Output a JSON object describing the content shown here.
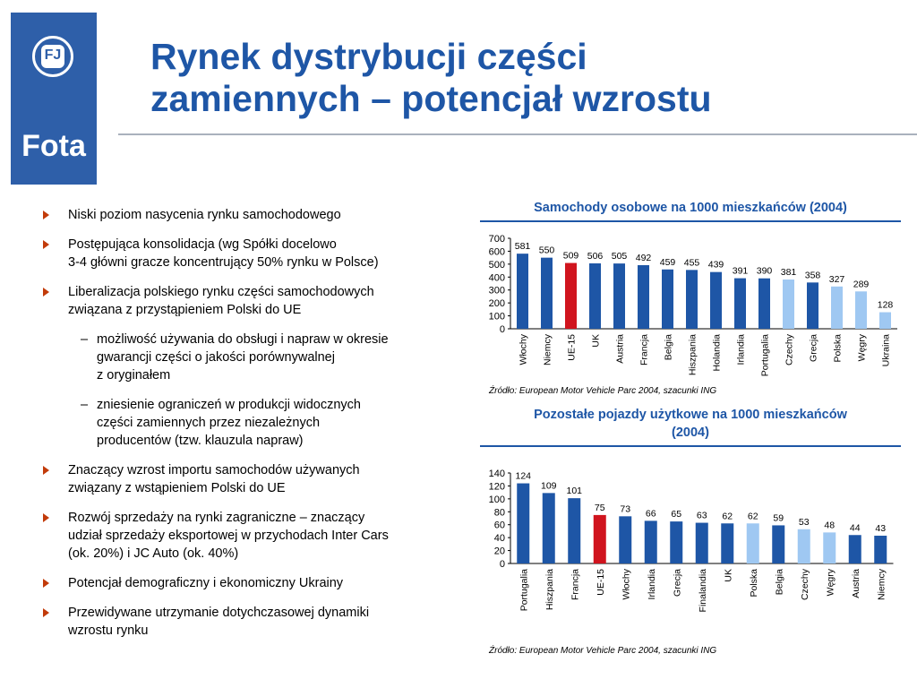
{
  "logo": {
    "mark_letters": "FJ",
    "brand": "Fota"
  },
  "title": "Rynek dystrybucji części\nzamiennych – potencjał wzrostu",
  "bullets": [
    {
      "type": "main",
      "text": "Niski poziom nasycenia rynku samochodowego"
    },
    {
      "type": "main",
      "text": "Postępująca konsolidacja (wg Spółki docelowo\n3-4 główni gracze koncentrujący 50% rynku w Polsce)"
    },
    {
      "type": "main",
      "text": "Liberalizacja polskiego rynku części samochodowych\nzwiązana z przystąpieniem Polski do UE"
    },
    {
      "type": "sub",
      "text": "możliwość używania do obsługi i napraw w okresie\ngwarancji części o jakości porównywalnej\nz oryginałem"
    },
    {
      "type": "sub",
      "text": "zniesienie ograniczeń w produkcji widocznych\nczęści zamiennych przez niezależnych\nproducentów (tzw. klauzula napraw)"
    },
    {
      "type": "main",
      "text": "Znaczący wzrost importu samochodów używanych\nzwiązany z wstąpieniem Polski do UE"
    },
    {
      "type": "main",
      "text": "Rozwój sprzedaży na rynki zagraniczne – znaczący\nudział sprzedaży eksportowej w przychodach Inter Cars\n(ok. 20%) i JC Auto (ok. 40%)"
    },
    {
      "type": "main",
      "text": "Potencjał demograficzny i ekonomiczny Ukrainy"
    },
    {
      "type": "main",
      "text": "Przewidywane utrzymanie dotychczasowej dynamiki\nwzrostu rynku"
    }
  ],
  "colors": {
    "title": "#1e56a6",
    "bar_default": "#1e56a6",
    "bar_highlight": "#d0141e",
    "bar_light": "#9fc8f2",
    "arrow": "#c23b0a"
  },
  "chart_data": [
    {
      "type": "bar",
      "title": "Samochody osobowe na 1000 mieszkańców (2004)",
      "categories": [
        "Włochy",
        "Niemcy",
        "UE-15",
        "UK",
        "Austria",
        "Francja",
        "Belgia",
        "Hiszpania",
        "Holandia",
        "Irlandia",
        "Portugalia",
        "Czechy",
        "Grecja",
        "Polska",
        "Węgry",
        "Ukraina"
      ],
      "values": [
        581,
        550,
        509,
        506,
        505,
        492,
        459,
        455,
        439,
        391,
        390,
        381,
        358,
        327,
        289,
        128
      ],
      "bar_colors": [
        "default",
        "default",
        "highlight",
        "default",
        "default",
        "default",
        "default",
        "default",
        "default",
        "default",
        "default",
        "light",
        "default",
        "light",
        "light",
        "light"
      ],
      "yticks": [
        0,
        100,
        200,
        300,
        400,
        500,
        600,
        700
      ],
      "ylim": [
        0,
        700
      ],
      "source": "Źródło: European Motor Vehicle Parc 2004, szacunki ING"
    },
    {
      "type": "bar",
      "title": "Pozostałe pojazdy użytkowe na 1000 mieszkańców\n(2004)",
      "categories": [
        "Portugalia",
        "Hiszpania",
        "Francja",
        "UE-15",
        "Włochy",
        "Irlandia",
        "Grecja",
        "Finalandia",
        "UK",
        "Polska",
        "Belgia",
        "Czechy",
        "Węgry",
        "Austria",
        "Niemcy"
      ],
      "values": [
        124,
        109,
        101,
        75,
        73,
        66,
        65,
        63,
        62,
        62,
        59,
        53,
        48,
        44,
        43
      ],
      "bar_colors": [
        "default",
        "default",
        "default",
        "highlight",
        "default",
        "default",
        "default",
        "default",
        "default",
        "light",
        "default",
        "light",
        "light",
        "default",
        "default"
      ],
      "yticks": [
        0,
        20,
        40,
        60,
        80,
        100,
        120,
        140
      ],
      "ylim": [
        0,
        140
      ],
      "source": "Źródło: European Motor Vehicle Parc 2004, szacunki ING"
    }
  ]
}
